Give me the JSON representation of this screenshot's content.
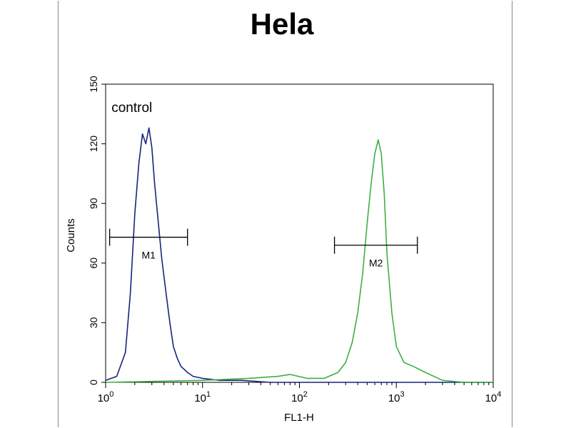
{
  "chart_data": {
    "type": "line",
    "title": "Hela",
    "xlabel": "FL1-H",
    "ylabel": "Counts",
    "x_scale": "log",
    "xlim": [
      1,
      10000
    ],
    "ylim": [
      0,
      150
    ],
    "x_ticks": [
      {
        "value": 1,
        "base": "10",
        "exp": "0"
      },
      {
        "value": 10,
        "base": "10",
        "exp": "1"
      },
      {
        "value": 100,
        "base": "10",
        "exp": "2"
      },
      {
        "value": 1000,
        "base": "10",
        "exp": "3"
      },
      {
        "value": 10000,
        "base": "10",
        "exp": "4"
      }
    ],
    "y_ticks": [
      0,
      30,
      60,
      90,
      120,
      150
    ],
    "grid": false,
    "series": [
      {
        "name": "control",
        "color": "#1a237e",
        "x": [
          1.0,
          1.3,
          1.6,
          1.8,
          2.0,
          2.2,
          2.4,
          2.6,
          2.8,
          3.0,
          3.2,
          3.5,
          3.8,
          4.2,
          4.6,
          5.0,
          5.5,
          6.0,
          7.0,
          8.0,
          10,
          15,
          25,
          50,
          100,
          1000,
          10000
        ],
        "y": [
          1,
          3,
          15,
          45,
          85,
          110,
          125,
          120,
          128,
          118,
          100,
          80,
          62,
          45,
          30,
          18,
          12,
          8,
          5,
          3,
          2,
          1,
          1,
          0,
          0,
          0,
          0
        ]
      },
      {
        "color": "#3cb043",
        "x": [
          1.0,
          10,
          30,
          60,
          80,
          120,
          180,
          250,
          300,
          350,
          400,
          450,
          500,
          550,
          600,
          650,
          700,
          750,
          800,
          900,
          1000,
          1200,
          1500,
          2000,
          3000,
          5000,
          10000
        ],
        "y": [
          0,
          1,
          2,
          3,
          4,
          2,
          2,
          5,
          10,
          20,
          35,
          55,
          80,
          100,
          115,
          122,
          115,
          95,
          65,
          35,
          18,
          10,
          8,
          5,
          1,
          0,
          0
        ]
      }
    ],
    "markers": [
      {
        "label": "M1",
        "x_start": 1.1,
        "x_end": 7,
        "y": 73
      },
      {
        "label": "M2",
        "x_start": 230,
        "x_end": 1650,
        "y": 69
      }
    ],
    "annotations": [
      {
        "text": "control",
        "x": 1.15,
        "y": 136
      }
    ]
  }
}
